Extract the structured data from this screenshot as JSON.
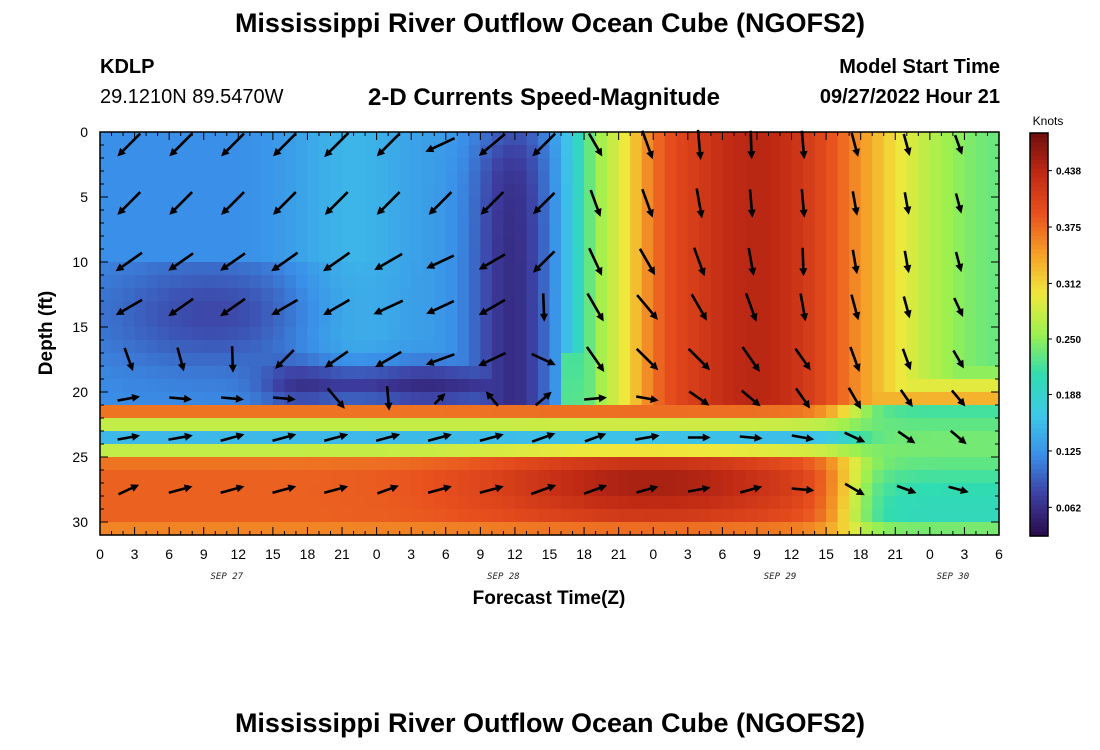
{
  "header": {
    "title": "Mississippi River Outflow Ocean Cube (NGOFS2)",
    "station": "KDLP",
    "coords": "29.1210N  89.5470W",
    "subtitle": "2-D Currents Speed-Magnitude",
    "model_start_label": "Model Start Time",
    "model_start_value": "09/27/2022 Hour 21"
  },
  "footer": {
    "title": "Mississippi River Outflow Ocean Cube (NGOFS2)"
  },
  "colors": {
    "arrow": "#000000",
    "colormap": [
      "#2a0a4a",
      "#3d3da0",
      "#3a8fe8",
      "#3ec8e8",
      "#30dcb0",
      "#9bf050",
      "#f0e83c",
      "#f5a028",
      "#e8501e",
      "#c02a14",
      "#6e0e0e"
    ]
  },
  "chart_data": {
    "type": "heatmap",
    "xlabel": "Forecast Time(Z)",
    "ylabel": "Depth (ft)",
    "x_tick_labels": [
      "0",
      "3",
      "6",
      "9",
      "12",
      "15",
      "18",
      "21",
      "0",
      "3",
      "6",
      "9",
      "12",
      "15",
      "18",
      "21",
      "0",
      "3",
      "6",
      "9",
      "12",
      "15",
      "18",
      "21",
      "0",
      "3",
      "6"
    ],
    "x_range_hours": [
      0,
      78
    ],
    "day_labels": [
      {
        "label": "SEP 27",
        "hour": 11
      },
      {
        "label": "SEP 28",
        "hour": 35
      },
      {
        "label": "SEP 29",
        "hour": 59
      },
      {
        "label": "SEP 30",
        "hour": 74
      }
    ],
    "y_ticks": [
      0,
      5,
      10,
      15,
      20,
      25,
      30
    ],
    "y_range": [
      0,
      31
    ],
    "y_inverted": true,
    "colorbar": {
      "units": "Knots",
      "ticks": [
        0.062,
        0.125,
        0.188,
        0.25,
        0.312,
        0.375,
        0.438
      ],
      "tick_labels": [
        "0.062",
        "0.125",
        "0.188",
        "0.250",
        "0.312",
        "0.375",
        "0.438"
      ],
      "range": [
        0.03,
        0.48
      ]
    },
    "grid_x_hours": 78,
    "grid_depths": 31,
    "arrow_hours": [
      2.5,
      7,
      11.5,
      16,
      20.5,
      25,
      29.5,
      34,
      38.5,
      43,
      47.5,
      52,
      56.5,
      61,
      65.5,
      70,
      74.5
    ],
    "arrow_depths": [
      1,
      5.5,
      10,
      13.5,
      17.5,
      20.5,
      23.5,
      27.5
    ],
    "arrow_angle_deg": [
      [
        225,
        225,
        225,
        225,
        225,
        225,
        205,
        220,
        225,
        300,
        290,
        275,
        272,
        275,
        285,
        285,
        290
      ],
      [
        225,
        225,
        225,
        225,
        225,
        225,
        225,
        225,
        225,
        290,
        290,
        280,
        275,
        275,
        280,
        280,
        285
      ],
      [
        215,
        215,
        215,
        215,
        215,
        210,
        205,
        210,
        225,
        295,
        300,
        290,
        280,
        272,
        280,
        280,
        285
      ],
      [
        210,
        215,
        215,
        210,
        210,
        205,
        205,
        210,
        272,
        300,
        310,
        300,
        290,
        280,
        285,
        285,
        295
      ],
      [
        290,
        285,
        272,
        225,
        215,
        210,
        200,
        205,
        335,
        305,
        315,
        315,
        305,
        305,
        290,
        290,
        300
      ],
      [
        10,
        355,
        355,
        355,
        310,
        275,
        45,
        130,
        40,
        5,
        350,
        325,
        320,
        305,
        300,
        305,
        310
      ],
      [
        10,
        10,
        15,
        15,
        15,
        15,
        15,
        15,
        20,
        20,
        10,
        0,
        355,
        350,
        335,
        325,
        320
      ],
      [
        25,
        15,
        15,
        15,
        15,
        20,
        15,
        15,
        20,
        20,
        15,
        10,
        15,
        355,
        330,
        340,
        345
      ]
    ],
    "arrow_length": [
      [
        0.85,
        0.85,
        0.85,
        0.85,
        0.9,
        0.85,
        0.85,
        0.9,
        0.85,
        0.7,
        0.8,
        0.8,
        0.75,
        0.75,
        0.65,
        0.6,
        0.55
      ],
      [
        0.85,
        0.85,
        0.85,
        0.85,
        0.85,
        0.85,
        0.85,
        0.85,
        0.8,
        0.75,
        0.8,
        0.8,
        0.75,
        0.75,
        0.65,
        0.6,
        0.55
      ],
      [
        0.85,
        0.8,
        0.8,
        0.85,
        0.85,
        0.85,
        0.8,
        0.8,
        0.8,
        0.8,
        0.8,
        0.8,
        0.75,
        0.75,
        0.65,
        0.6,
        0.55
      ],
      [
        0.8,
        0.8,
        0.8,
        0.8,
        0.8,
        0.85,
        0.8,
        0.8,
        0.75,
        0.85,
        0.85,
        0.8,
        0.8,
        0.75,
        0.7,
        0.6,
        0.55
      ],
      [
        0.65,
        0.65,
        0.7,
        0.7,
        0.75,
        0.8,
        0.8,
        0.8,
        0.7,
        0.8,
        0.8,
        0.8,
        0.8,
        0.7,
        0.7,
        0.6,
        0.55
      ],
      [
        0.6,
        0.6,
        0.6,
        0.6,
        0.7,
        0.65,
        0.4,
        0.5,
        0.55,
        0.6,
        0.6,
        0.65,
        0.65,
        0.65,
        0.65,
        0.55,
        0.55
      ],
      [
        0.6,
        0.65,
        0.65,
        0.65,
        0.65,
        0.65,
        0.65,
        0.65,
        0.65,
        0.6,
        0.65,
        0.6,
        0.6,
        0.6,
        0.6,
        0.55,
        0.55
      ],
      [
        0.6,
        0.65,
        0.65,
        0.65,
        0.65,
        0.6,
        0.65,
        0.65,
        0.7,
        0.65,
        0.6,
        0.6,
        0.6,
        0.6,
        0.6,
        0.55,
        0.55
      ]
    ]
  }
}
